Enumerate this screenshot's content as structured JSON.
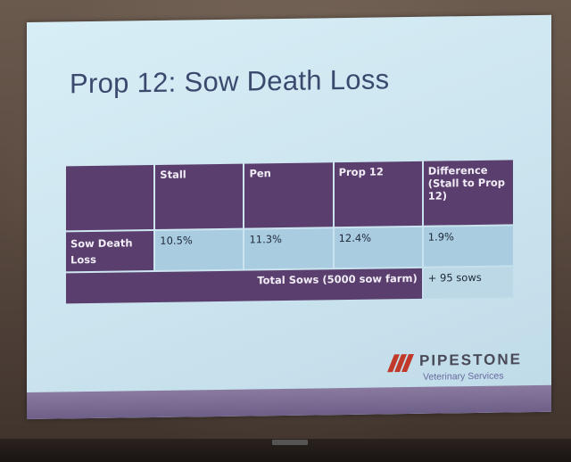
{
  "slide": {
    "title": "Prop 12: Sow Death Loss",
    "table": {
      "headers": [
        "",
        "Stall",
        "Pen",
        "Prop 12",
        "Difference (Stall to Prop 12)"
      ],
      "rows": [
        {
          "label": "Sow Death Loss",
          "values": [
            "10.5%",
            "11.3%",
            "12.4%",
            "1.9%"
          ]
        }
      ],
      "total": {
        "label": "Total Sows (5000 sow farm)",
        "value": "+ 95 sows"
      }
    },
    "logo": {
      "name": "PIPESTONE",
      "subtitle": "Veterinary Services"
    },
    "colors": {
      "header_purple": "#5a3f6e",
      "cell_blue": "#a9cce0",
      "title_blue": "#3a4a6e"
    }
  }
}
